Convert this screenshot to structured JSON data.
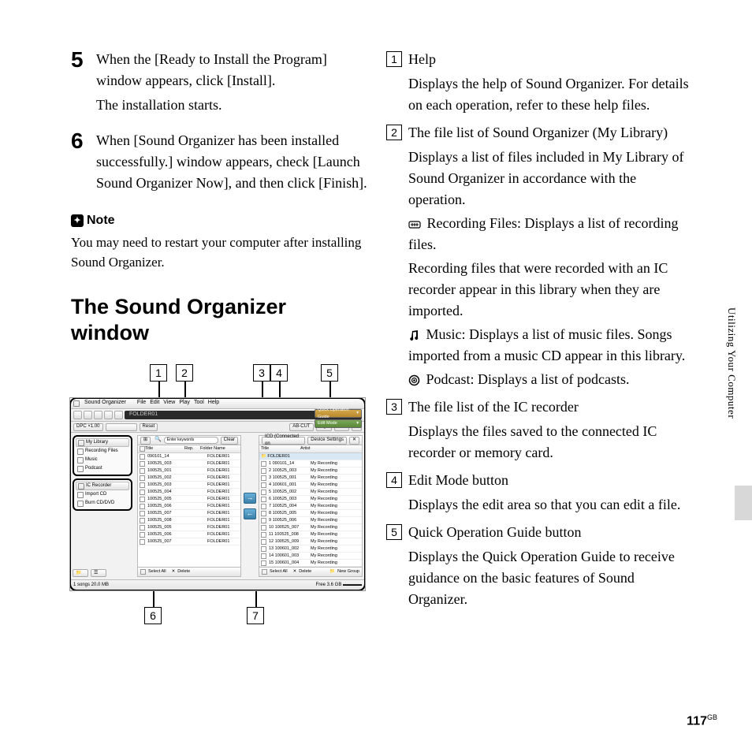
{
  "steps": [
    {
      "n": "5",
      "lines": [
        "When the [Ready to Install the Program] window appears, click [Install].",
        "The installation starts."
      ]
    },
    {
      "n": "6",
      "lines": [
        "When [Sound Organizer has been installed successfully.] window appears, check [Launch Sound Organizer Now], and then click [Finish]."
      ]
    }
  ],
  "note": {
    "title": "Note",
    "text": "You may need to restart your computer after installing Sound Organizer."
  },
  "h2": "The Sound Organizer window",
  "callouts": [
    {
      "n": "1",
      "title": "Help",
      "desc": [
        "Displays the help of Sound Organizer. For details on each operation, refer to these help files."
      ]
    },
    {
      "n": "2",
      "title": "The file list of Sound Organizer (My Library)",
      "desc": [
        "Displays a list of files included in My Library of Sound Organizer in accordance with the operation.",
        {
          "icon": "rec",
          "text": " Recording Files: Displays a list of recording files."
        },
        "Recording files that were recorded with an IC recorder appear in this library when they are imported.",
        {
          "icon": "music",
          "text": " Music: Displays a list of music files. Songs imported from a music CD appear in this library."
        },
        {
          "icon": "podcast",
          "text": " Podcast: Displays a list of podcasts."
        }
      ]
    },
    {
      "n": "3",
      "title": "The file list of the IC recorder",
      "desc": [
        "Displays the files saved to the connected IC recorder or memory card."
      ]
    },
    {
      "n": "4",
      "title": "Edit Mode button",
      "desc": [
        "Displays the edit area so that you can edit a file."
      ]
    },
    {
      "n": "5",
      "title": "Quick Operation Guide button",
      "desc": [
        "Displays the Quick Operation Guide to receive guidance on the basic features of Sound Organizer."
      ]
    }
  ],
  "sideTab": "Utilizing Your Computer",
  "pageNum": "117",
  "pageNumSuffix": "GB",
  "shot": {
    "appTitle": "Sound Organizer",
    "menus": [
      "File",
      "Edit",
      "View",
      "Play",
      "Tool",
      "Help"
    ],
    "folderDisplay": "FOLDER01",
    "timeDisplay": "13:42",
    "quickGuide": "Quick Operation Guide",
    "editMode": "Edit Mode",
    "dpc": "DPC ×1.00",
    "reset": "Reset",
    "abcut": "AB-CUT",
    "sideTop": [
      {
        "label": "My Library",
        "hd": true
      },
      {
        "label": "Recording Files"
      },
      {
        "label": "Music"
      },
      {
        "label": "Podcast"
      }
    ],
    "sideBot": [
      {
        "label": "IC Recorder",
        "hd": true
      },
      {
        "label": "Import CD"
      },
      {
        "label": "Burn CD/DVD"
      }
    ],
    "leftCols": [
      "Title",
      "Rep.",
      "Folder Name"
    ],
    "searchPlaceholder": "Enter keywords",
    "clear": "Clear",
    "leftRows": [
      [
        "090101_14",
        "",
        "FOLDER01"
      ],
      [
        "100525_003",
        "",
        "FOLDER01"
      ],
      [
        "100525_001",
        "",
        "FOLDER01"
      ],
      [
        "100525_002",
        "",
        "FOLDER01"
      ],
      [
        "100525_003",
        "",
        "FOLDER01"
      ],
      [
        "100525_004",
        "",
        "FOLDER01"
      ],
      [
        "100525_005",
        "",
        "FOLDER01"
      ],
      [
        "100525_006",
        "",
        "FOLDER01"
      ],
      [
        "100525_007",
        "",
        "FOLDER01"
      ],
      [
        "100525_008",
        "",
        "FOLDER01"
      ],
      [
        "100525_005",
        "",
        "FOLDER01"
      ],
      [
        "100525_006",
        "",
        "FOLDER01"
      ],
      [
        "100525_007",
        "",
        "FOLDER01"
      ]
    ],
    "rightHeader": "ICD (Connected on",
    "deviceSettings": "Device Settings",
    "rightCols": [
      "Title",
      "Artist"
    ],
    "rightFolder": "FOLDER01",
    "rightRows": [
      [
        "1 090101_14",
        "My Recording"
      ],
      [
        "2 100525_003",
        "My Recording"
      ],
      [
        "3 100525_001",
        "My Recording"
      ],
      [
        "4 100601_001",
        "My Recording"
      ],
      [
        "5 100525_002",
        "My Recording"
      ],
      [
        "6 100525_003",
        "My Recording"
      ],
      [
        "7 100525_004",
        "My Recording"
      ],
      [
        "8 100525_005",
        "My Recording"
      ],
      [
        "9 100525_006",
        "My Recording"
      ],
      [
        "10 100525_007",
        "My Recording"
      ],
      [
        "11 100525_008",
        "My Recording"
      ],
      [
        "12 100525_009",
        "My Recording"
      ],
      [
        "13 100601_002",
        "My Recording"
      ],
      [
        "14 100601_003",
        "My Recording"
      ],
      [
        "15 100601_004",
        "My Recording"
      ],
      [
        "16 100601_005",
        "My Recording"
      ]
    ],
    "rightFolder2": "FOLDER02",
    "selectAll": "Select All",
    "delete": "Delete",
    "newGroup": "New Group",
    "statusL": "1 songs 20.0 MB",
    "statusR": "Free 3.6 GB",
    "topLabels": [
      "1",
      "2",
      "3",
      "4",
      "5"
    ],
    "botLabels": [
      "6",
      "7"
    ],
    "topPos": [
      115,
      148,
      246,
      268,
      332
    ],
    "botPos": [
      108,
      238
    ]
  }
}
